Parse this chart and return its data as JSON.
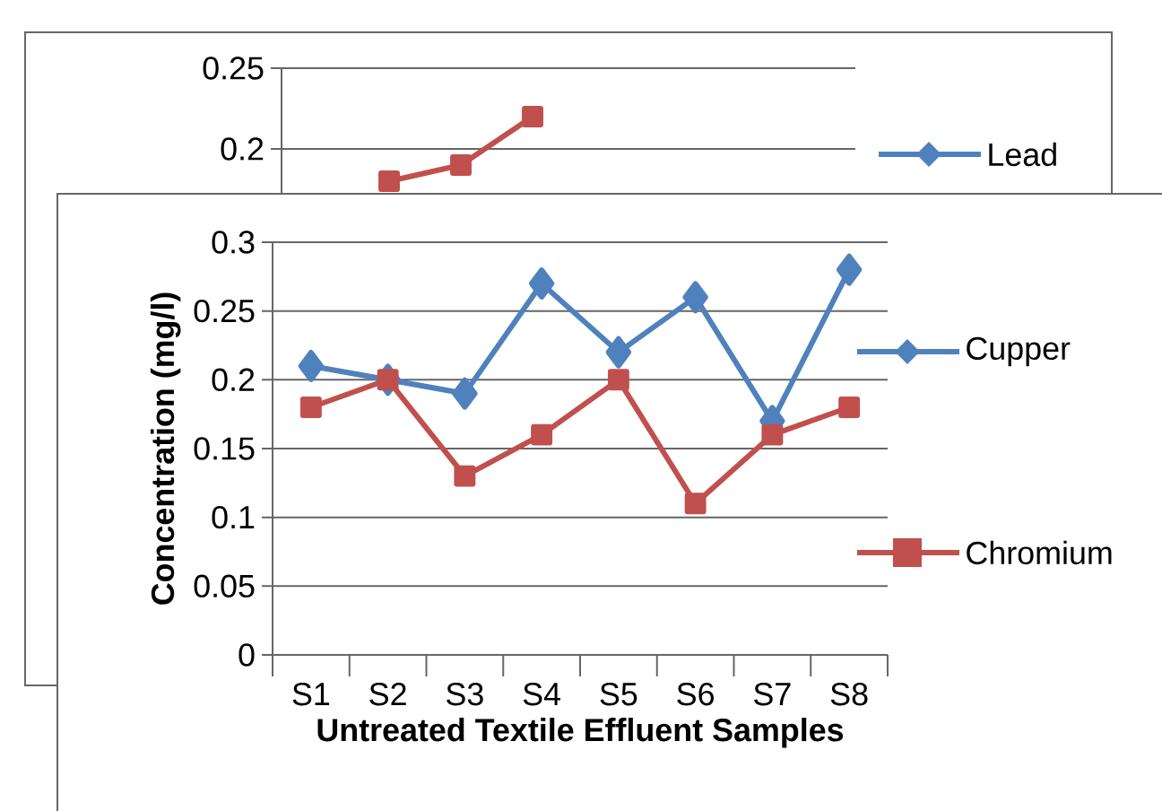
{
  "chart_data": [
    {
      "type": "line",
      "categories": [
        null,
        null,
        null,
        null,
        null,
        null,
        null,
        null
      ],
      "series": [
        {
          "name": "Lead",
          "color": "#4f81bd",
          "marker": "diamond",
          "values": [
            null,
            null,
            null,
            null,
            null,
            null,
            null,
            null
          ]
        },
        {
          "color": "#c0504d",
          "marker": "square",
          "values": [
            null,
            0.18,
            0.19,
            0.22,
            null,
            null,
            null,
            null
          ]
        }
      ],
      "ylim": [
        0,
        0.25
      ],
      "yticks": [
        0.2,
        0.25
      ],
      "grid": "y",
      "legend": "right",
      "tick_labels": "y",
      "line_style": "solid"
    },
    {
      "type": "line",
      "xlabel": "Untreated Textile Effluent Samples",
      "ylabel": "Concentration (mg/l)",
      "categories": [
        "S1",
        "S2",
        "S3",
        "S4",
        "S5",
        "S6",
        "S7",
        "S8"
      ],
      "series": [
        {
          "name": "Cupper",
          "color": "#4f81bd",
          "marker": "diamond",
          "values": [
            0.21,
            0.2,
            0.19,
            0.27,
            0.22,
            0.26,
            0.17,
            0.28
          ]
        },
        {
          "name": "Chromium",
          "color": "#c0504d",
          "marker": "square",
          "values": [
            0.18,
            0.2,
            0.13,
            0.16,
            0.2,
            0.11,
            0.16,
            0.18
          ]
        }
      ],
      "ylim": [
        0,
        0.3
      ],
      "yticks": [
        0,
        0.05,
        0.1,
        0.15,
        0.2,
        0.25,
        0.3
      ],
      "grid": "y",
      "legend": "right",
      "line_style": "solid"
    }
  ]
}
